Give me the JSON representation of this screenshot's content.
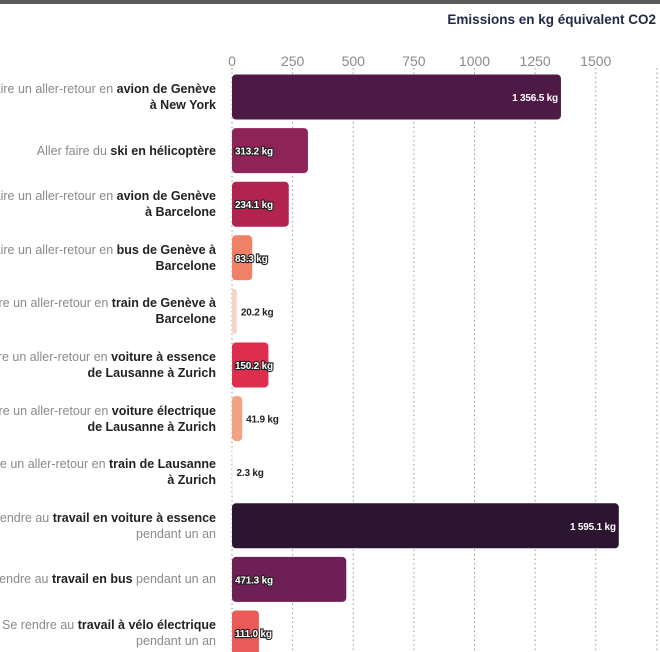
{
  "chart_data": {
    "type": "bar",
    "orientation": "horizontal",
    "title": "Emissions en kg équivalent CO2",
    "xlim": [
      0,
      1700
    ],
    "ticks": [
      0,
      250,
      500,
      750,
      1000,
      1250,
      1500
    ],
    "grid": true,
    "rows": [
      {
        "parts": [
          {
            "text": "Faire un aller-retour en ",
            "b": false
          },
          {
            "text": "avion de Genève à New York",
            "b": true
          }
        ],
        "value": 1356.5,
        "value_label": "1 356.5 kg",
        "color": "#4d1a45"
      },
      {
        "parts": [
          {
            "text": "Aller faire du ",
            "b": false
          },
          {
            "text": "ski en hélicoptère",
            "b": true
          }
        ],
        "value": 313.2,
        "value_label": "313.2 kg",
        "color": "#8e2357"
      },
      {
        "parts": [
          {
            "text": "Faire un aller-retour en ",
            "b": false
          },
          {
            "text": "avion de Genève à Barcelone",
            "b": true
          }
        ],
        "value": 234.1,
        "value_label": "234.1 kg",
        "color": "#b3234f"
      },
      {
        "parts": [
          {
            "text": "Faire un aller-retour en ",
            "b": false
          },
          {
            "text": "bus de Genève à Barcelone",
            "b": true
          }
        ],
        "value": 83.3,
        "value_label": "83.3 kg",
        "color": "#f08068"
      },
      {
        "parts": [
          {
            "text": "Faire un aller-retour en ",
            "b": false
          },
          {
            "text": "train de Genève à Barcelone",
            "b": true
          }
        ],
        "value": 20.2,
        "value_label": "20.2 kg",
        "color": "#f9d3c5"
      },
      {
        "parts": [
          {
            "text": "Faire un aller-retour en ",
            "b": false
          },
          {
            "text": "voiture à essence de Lausanne à Zurich",
            "b": true
          }
        ],
        "value": 150.2,
        "value_label": "150.2 kg",
        "color": "#dd2e4d"
      },
      {
        "parts": [
          {
            "text": "Faire un aller-retour en ",
            "b": false
          },
          {
            "text": "voiture électrique de Lausanne à Zurich",
            "b": true
          }
        ],
        "value": 41.9,
        "value_label": "41.9 kg",
        "color": "#f5a283"
      },
      {
        "parts": [
          {
            "text": "Faire un aller-retour en ",
            "b": false
          },
          {
            "text": "train de Lausanne à Zurich",
            "b": true
          }
        ],
        "value": 2.3,
        "value_label": "2.3 kg",
        "color": "#fbe6dc"
      },
      {
        "parts": [
          {
            "text": "Se rendre au ",
            "b": false
          },
          {
            "text": "travail en voiture à essence",
            "b": true
          },
          {
            "text": " pendant un an",
            "b": false
          }
        ],
        "value": 1595.1,
        "value_label": "1 595.1 kg",
        "color": "#2b1530"
      },
      {
        "parts": [
          {
            "text": "Se rendre au ",
            "b": false
          },
          {
            "text": "travail en bus",
            "b": true
          },
          {
            "text": " pendant un an",
            "b": false
          }
        ],
        "value": 471.3,
        "value_label": "471.3 kg",
        "color": "#6e1f55"
      },
      {
        "parts": [
          {
            "text": "Se rendre au ",
            "b": false
          },
          {
            "text": "travail à vélo électrique",
            "b": true
          },
          {
            "text": " pendant un an",
            "b": false
          }
        ],
        "value": 111.0,
        "value_label": "111.0 kg",
        "color": "#ea5a58"
      }
    ]
  }
}
